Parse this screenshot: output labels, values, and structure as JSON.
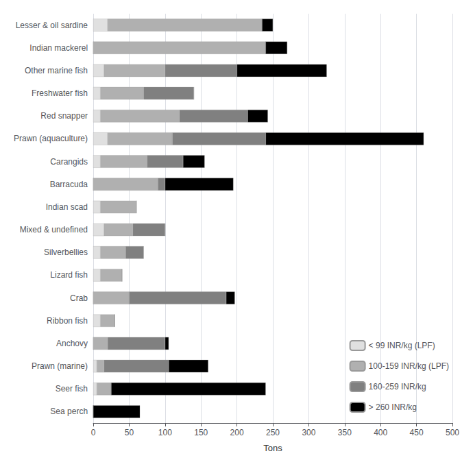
{
  "chart_data": {
    "type": "bar",
    "orientation": "horizontal",
    "stacked": true,
    "categories": [
      "Lesser & oil sardine",
      "Indian mackerel",
      "Other marine fish",
      "Freshwater fish",
      "Red snapper",
      "Prawn (aquaculture)",
      "Carangids",
      "Barracuda",
      "Indian scad",
      "Mixed & undefined",
      "Silverbellies",
      "Lizard fish",
      "Crab",
      "Ribbon fish",
      "Anchovy",
      "Prawn (marine)",
      "Seer fish",
      "Sea perch"
    ],
    "series": [
      {
        "name": "< 99 INR/kg (LPF)",
        "color": "#e0e0e0",
        "values": [
          20,
          0,
          15,
          10,
          10,
          20,
          10,
          0,
          10,
          15,
          10,
          10,
          0,
          10,
          0,
          5,
          5,
          0
        ]
      },
      {
        "name": "100-159 INR/kg (LPF)",
        "color": "#b0b0b0",
        "values": [
          215,
          240,
          85,
          60,
          110,
          90,
          65,
          90,
          50,
          40,
          35,
          30,
          50,
          20,
          20,
          10,
          20,
          0
        ]
      },
      {
        "name": "160-259 INR/kg",
        "color": "#808080",
        "values": [
          0,
          0,
          100,
          70,
          95,
          130,
          50,
          10,
          0,
          45,
          25,
          0,
          135,
          0,
          80,
          90,
          0,
          0
        ]
      },
      {
        "name": "> 260 INR/kg",
        "color": "#000000",
        "values": [
          15,
          30,
          125,
          0,
          28,
          220,
          30,
          95,
          0,
          0,
          0,
          0,
          12,
          0,
          5,
          55,
          215,
          65
        ]
      }
    ],
    "xlabel": "Tons",
    "xlim": [
      0,
      500
    ],
    "xticks": [
      0,
      50,
      100,
      150,
      200,
      250,
      300,
      350,
      400,
      450,
      500
    ],
    "grid": true,
    "legend": "lower right"
  }
}
